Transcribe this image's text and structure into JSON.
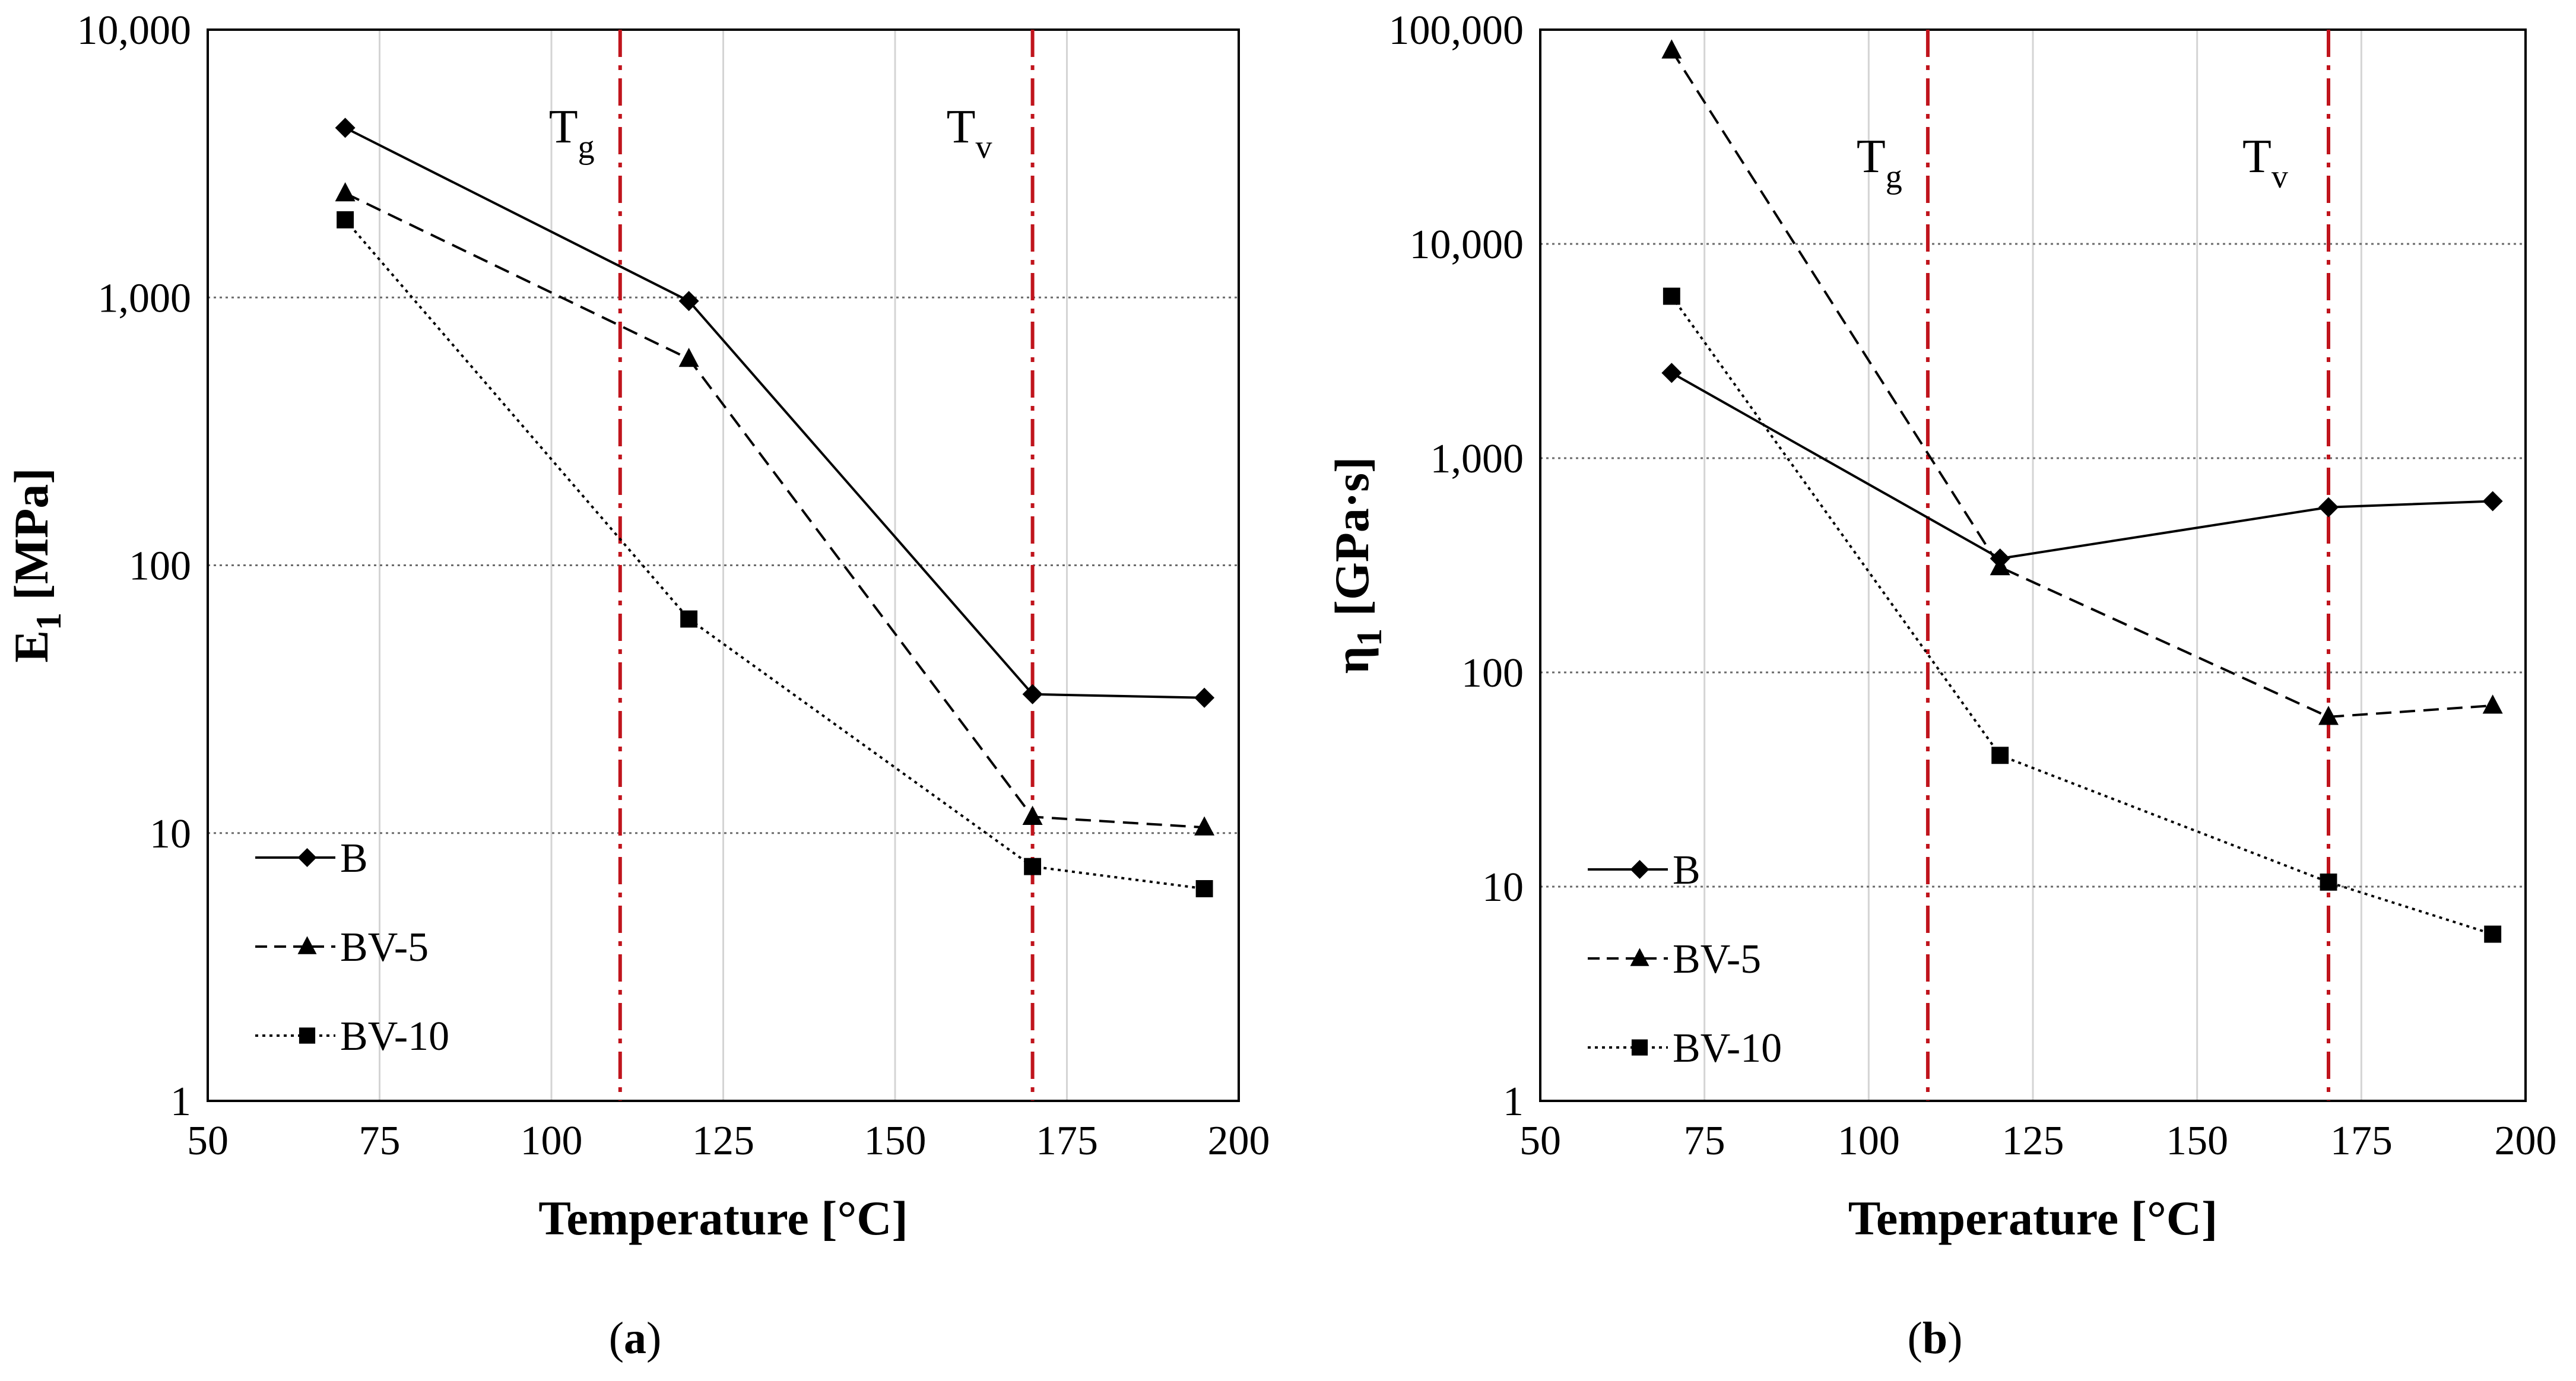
{
  "chart_data": [
    {
      "type": "line",
      "panel": "a",
      "caption": "(a)",
      "caption_bold": "a",
      "xlabel": "Temperature [°C]",
      "ylabel_main": "E",
      "ylabel_sub": "1",
      "ylabel_rest": " [MPa]",
      "xlim": [
        50,
        200
      ],
      "ylim": [
        1,
        10000
      ],
      "yscale": "log",
      "xticks": [
        50,
        75,
        100,
        125,
        150,
        175,
        200
      ],
      "xtick_labels": [
        "50",
        "75",
        "100",
        "125",
        "150",
        "175",
        "200"
      ],
      "yticks": [
        1,
        10,
        100,
        1000,
        10000
      ],
      "ytick_labels": [
        "1",
        "10",
        "100",
        "1,000",
        "10,000"
      ],
      "vlines": [
        {
          "x": 110,
          "label_main": "T",
          "label_sub": "g",
          "color": "#c0141c"
        },
        {
          "x": 170,
          "label_main": "T",
          "label_sub": "v",
          "color": "#c0141c"
        }
      ],
      "legend": "lower-left",
      "series": [
        {
          "name": "B",
          "x": [
            70,
            120,
            170,
            195
          ],
          "values": [
            4300,
            970,
            33,
            32
          ],
          "marker": "diamond",
          "dash": "solid"
        },
        {
          "name": "BV-5",
          "x": [
            70,
            120,
            170,
            195
          ],
          "values": [
            2450,
            590,
            11.5,
            10.5
          ],
          "marker": "triangle",
          "dash": "dashed"
        },
        {
          "name": "BV-10",
          "x": [
            70,
            120,
            170,
            195
          ],
          "values": [
            1950,
            63,
            7.5,
            6.2
          ],
          "marker": "square",
          "dash": "dotted"
        }
      ]
    },
    {
      "type": "line",
      "panel": "b",
      "caption": "(b)",
      "caption_bold": "b",
      "xlabel": "Temperature [°C]",
      "ylabel_main": "η",
      "ylabel_sub": "1",
      "ylabel_rest": " [GPa·s]",
      "xlim": [
        50,
        200
      ],
      "ylim": [
        1,
        100000
      ],
      "yscale": "log",
      "xticks": [
        50,
        75,
        100,
        125,
        150,
        175,
        200
      ],
      "xtick_labels": [
        "50",
        "75",
        "100",
        "125",
        "150",
        "175",
        "200"
      ],
      "yticks": [
        1,
        10,
        100,
        1000,
        10000,
        100000
      ],
      "ytick_labels": [
        "1",
        "10",
        "100",
        "1,000",
        "10,000",
        "100,000"
      ],
      "vlines": [
        {
          "x": 109,
          "label_main": "T",
          "label_sub": "g",
          "color": "#c0141c"
        },
        {
          "x": 170,
          "label_main": "T",
          "label_sub": "v",
          "color": "#c0141c"
        }
      ],
      "legend": "lower-left",
      "series": [
        {
          "name": "B",
          "x": [
            70,
            120,
            170,
            195
          ],
          "values": [
            2500,
            340,
            590,
            630
          ],
          "marker": "diamond",
          "dash": "solid"
        },
        {
          "name": "BV-5",
          "x": [
            70,
            120,
            170,
            195
          ],
          "values": [
            80000,
            310,
            62,
            70
          ],
          "marker": "triangle",
          "dash": "dashed"
        },
        {
          "name": "BV-10",
          "x": [
            70,
            120,
            170,
            195
          ],
          "values": [
            5700,
            41,
            10.5,
            6
          ],
          "marker": "square",
          "dash": "dotted"
        }
      ]
    }
  ]
}
